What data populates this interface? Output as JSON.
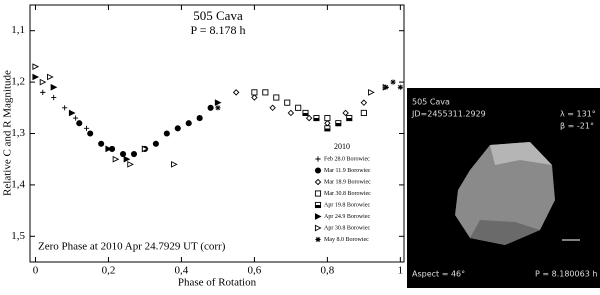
{
  "chart_data": {
    "type": "scatter",
    "title": "505 Cava",
    "subtitle": "P = 8.178 h",
    "x_label": "Phase of Rotation",
    "y_label": "Relative C and R Magnitude",
    "annotation": "Zero Phase at 2010 Apr 24.7929 UT (corr)",
    "legend_title": "2010",
    "legend": "right",
    "xlim": [
      -0.015,
      1.01
    ],
    "ylim": [
      1.05,
      1.55
    ],
    "y_inverted": true,
    "xticks": [
      0,
      {
        "value": 0.2,
        "label": "0,2"
      },
      {
        "value": 0.4,
        "label": "0,4"
      },
      {
        "value": 0.6,
        "label": "0,6"
      },
      {
        "value": 0.8,
        "label": "0,8"
      },
      1
    ],
    "yticks": [
      {
        "value": 1.1,
        "label": "1,1"
      },
      {
        "value": 1.2,
        "label": "1,2"
      },
      {
        "value": 1.3,
        "label": "1,3"
      },
      {
        "value": 1.4,
        "label": "1,4"
      },
      {
        "value": 1.5,
        "label": "1,5"
      }
    ],
    "series": [
      {
        "name": "Feb 28.0 Borowiec",
        "color": "#000000",
        "marker": "plus",
        "x": [
          0.02,
          0.05,
          0.08,
          0.11,
          0.14
        ],
        "values": [
          1.22,
          1.23,
          1.25,
          1.27,
          1.29
        ]
      },
      {
        "name": "Mar 11.9 Borowiec",
        "color": "#000000",
        "marker": "circle",
        "x": [
          0.12,
          0.15,
          0.18,
          0.21,
          0.24,
          0.27,
          0.3,
          0.33,
          0.36,
          0.39,
          0.42,
          0.45,
          0.48
        ],
        "values": [
          1.28,
          1.3,
          1.32,
          1.33,
          1.34,
          1.34,
          1.33,
          1.32,
          1.3,
          1.29,
          1.28,
          1.27,
          1.25
        ]
      },
      {
        "name": "Mar 18.9 Borowiec",
        "color": "#000000",
        "marker": "diamond",
        "x": [
          0.55,
          0.6,
          0.65,
          0.7,
          0.75,
          0.8,
          0.85,
          0.9
        ],
        "values": [
          1.22,
          1.23,
          1.25,
          1.26,
          1.27,
          1.28,
          1.26,
          1.24
        ]
      },
      {
        "name": "Mar 30.8 Borowiec",
        "color": "#000000",
        "marker": "square",
        "x": [
          0.6,
          0.63,
          0.66,
          0.69,
          0.72,
          0.8,
          0.9
        ],
        "values": [
          1.22,
          1.22,
          1.23,
          1.24,
          1.25,
          1.27,
          1.26
        ]
      },
      {
        "name": "Apr 19.8 Borowiec",
        "color": "#000000",
        "marker": "half-square",
        "x": [
          0.74,
          0.77,
          0.8,
          0.83,
          0.86
        ],
        "values": [
          1.26,
          1.27,
          1.29,
          1.28,
          1.27
        ]
      },
      {
        "name": "Apr 24.9 Borowiec",
        "color": "#000000",
        "marker": "triangle",
        "x": [
          0.0,
          0.05,
          0.1,
          0.2,
          0.25,
          0.3,
          0.5
        ],
        "values": [
          1.19,
          1.21,
          1.26,
          1.33,
          1.35,
          1.33,
          1.24
        ]
      },
      {
        "name": "Apr 30.8 Borowiec",
        "color": "#000000",
        "marker": "open-triangle",
        "x": [
          0.0,
          0.02,
          0.04,
          0.22,
          0.26,
          0.3,
          0.38,
          0.92,
          0.96
        ],
        "values": [
          1.17,
          1.2,
          1.19,
          1.35,
          1.36,
          1.33,
          1.36,
          1.22,
          1.21
        ]
      },
      {
        "name": "May 8.0 Borowiec",
        "color": "#000000",
        "marker": "asterisk",
        "x": [
          0.45,
          0.5,
          0.96,
          0.98,
          1.0
        ],
        "values": [
          1.27,
          1.25,
          1.21,
          1.2,
          1.21
        ]
      }
    ]
  },
  "shape_model": {
    "title": "505 Cava",
    "jd": "JD=2455311.2929",
    "lambda": "λ = 131°",
    "beta": "β = -21°",
    "aspect": "Aspect = 46°",
    "period": "P = 8.180063 h"
  }
}
